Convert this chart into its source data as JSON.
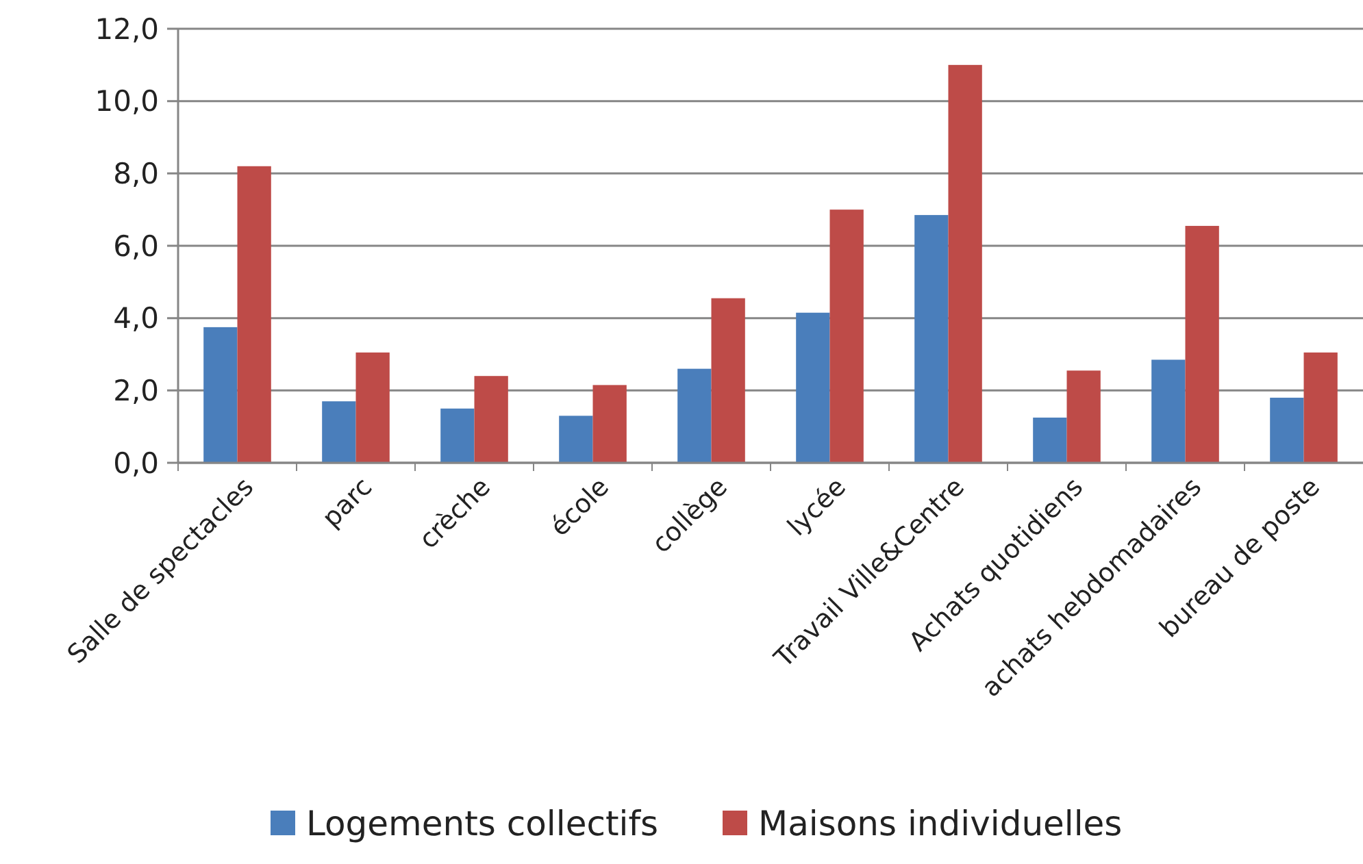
{
  "chart_data": {
    "type": "bar",
    "categories": [
      "Salle de spectacles",
      "parc",
      "crèche",
      "école",
      "collège",
      "lycée",
      "Travail Ville&Centre",
      "Achats quotidiens",
      "achats hebdomadaires",
      "bureau de poste"
    ],
    "series": [
      {
        "name": "Logements collectifs",
        "color": "#4a7ebb",
        "values": [
          3.75,
          1.7,
          1.5,
          1.3,
          2.6,
          4.15,
          6.85,
          1.25,
          2.85,
          1.8
        ]
      },
      {
        "name": "Maisons individuelles",
        "color": "#be4b48",
        "values": [
          8.2,
          3.05,
          2.4,
          2.15,
          4.55,
          7.0,
          11.0,
          2.55,
          6.55,
          3.05
        ]
      }
    ],
    "ylim": [
      0,
      12
    ],
    "yticks": [
      {
        "value": 0,
        "label": "0,0"
      },
      {
        "value": 2,
        "label": "2,0"
      },
      {
        "value": 4,
        "label": "4,0"
      },
      {
        "value": 6,
        "label": "6,0"
      },
      {
        "value": 8,
        "label": "8,0"
      },
      {
        "value": 10,
        "label": "10,0"
      },
      {
        "value": 12,
        "label": "12,0"
      }
    ],
    "grid": "y",
    "legend": "bottom"
  }
}
